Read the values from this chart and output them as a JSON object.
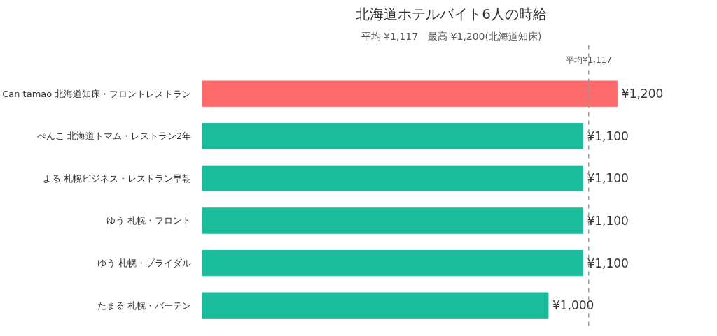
{
  "chart_data": {
    "type": "bar",
    "orientation": "horizontal",
    "title": "北海道ホテルバイト6人の時給",
    "subtitle": "平均 ¥1,117　最高 ¥1,200(北海道知床)",
    "categories": [
      "Can tamao  北海道知床・フロントレストラン",
      "ぺんこ  北海道トマム・レストラン2年",
      "よる  札幌ビジネス・レストラン早朝",
      "ゆう  札幌・フロント",
      "ゆう  札幌・ブライダル",
      "たまる  札幌・バーテン"
    ],
    "values": [
      1200,
      1100,
      1100,
      1100,
      1100,
      1000
    ],
    "colors": [
      "#ff6b6b",
      "#1abc9c",
      "#1abc9c",
      "#1abc9c",
      "#1abc9c",
      "#1abc9c"
    ],
    "value_labels": [
      "¥1,200",
      "¥1,100",
      "¥1,100",
      "¥1,100",
      "¥1,100",
      "¥1,000"
    ],
    "ref_lines": [
      {
        "axis": "x",
        "value": 1117,
        "label": "平均¥1,117",
        "color": "#999999",
        "line_style": "dashed"
      }
    ],
    "grid": false,
    "tick_labels": "y"
  }
}
